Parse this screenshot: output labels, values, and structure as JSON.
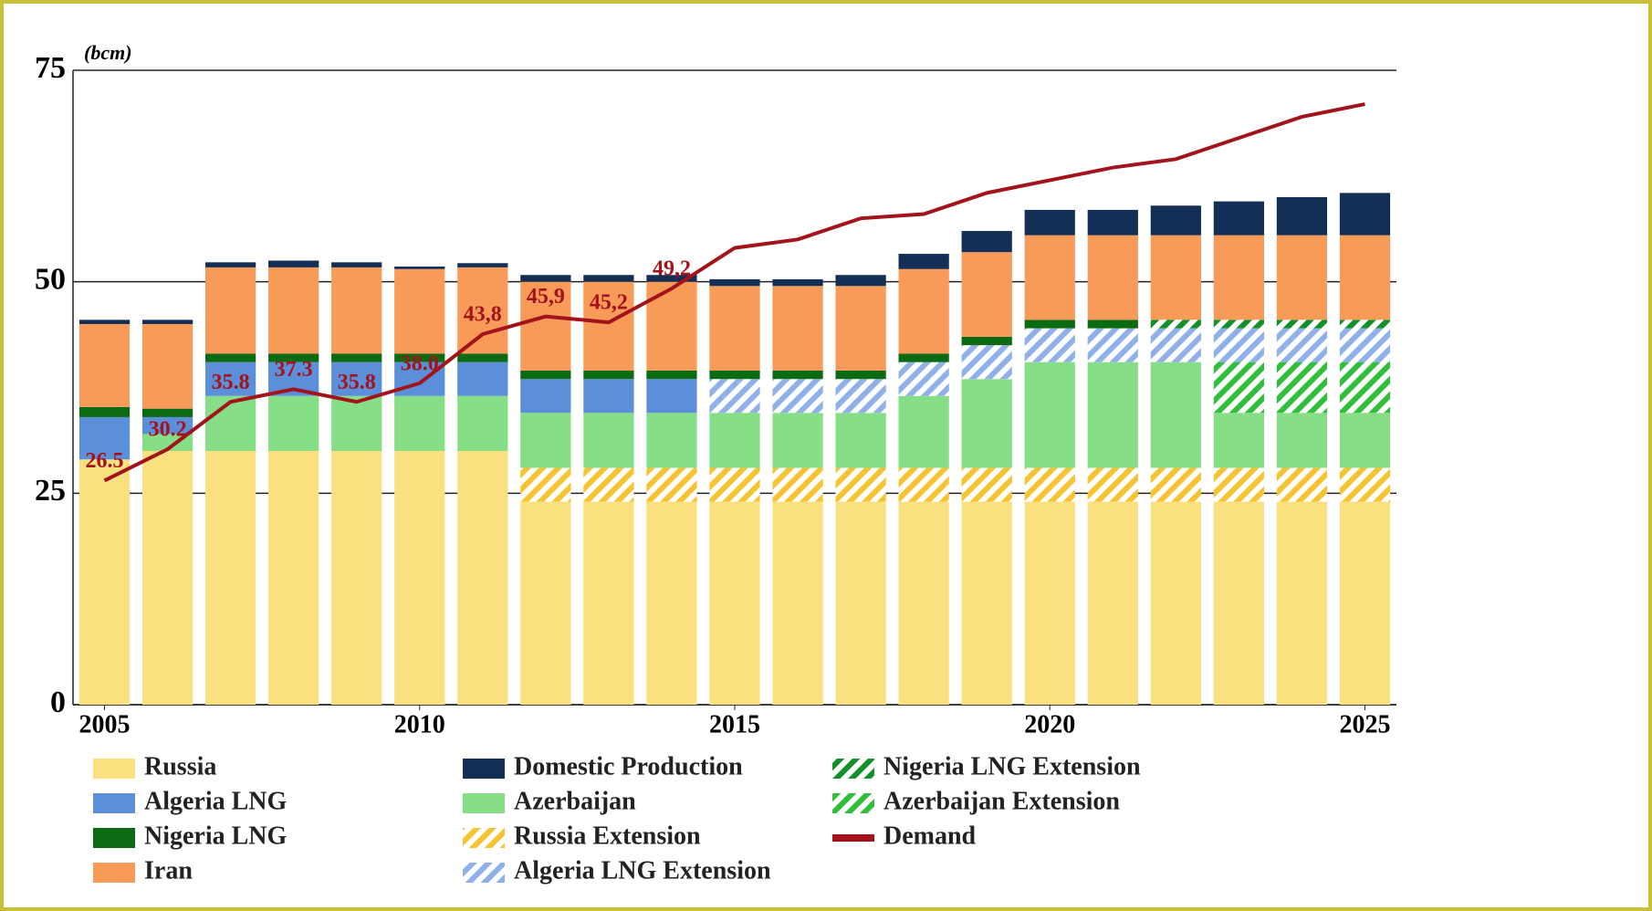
{
  "chart_data": {
    "type": "bar",
    "y_label": "(bcm)",
    "x": [
      2005,
      2006,
      2007,
      2008,
      2009,
      2010,
      2011,
      2012,
      2013,
      2014,
      2015,
      2016,
      2017,
      2018,
      2019,
      2020,
      2021,
      2022,
      2023,
      2024,
      2025
    ],
    "xlim": [
      2004.5,
      2025.5
    ],
    "xticks": [
      2005,
      2010,
      2015,
      2020,
      2025
    ],
    "ylim": [
      0,
      75
    ],
    "yticks": [
      0,
      25,
      50,
      75
    ],
    "grid": true,
    "series": [
      {
        "name": "Russia",
        "color": "#fbe07f",
        "hatch": false,
        "values": [
          29,
          30,
          30,
          30,
          30,
          30,
          30,
          24,
          24,
          24,
          24,
          24,
          24,
          24,
          24,
          24,
          24,
          24,
          24,
          24,
          24
        ]
      },
      {
        "name": "Algeria LNG",
        "color": "#5b8fd9",
        "hatch": false,
        "values": [
          5,
          2,
          4,
          4,
          4,
          4,
          4,
          4,
          4,
          4,
          0,
          0,
          0,
          0,
          0,
          0,
          0,
          0,
          0,
          0,
          0
        ]
      },
      {
        "name": "Nigeria LNG",
        "color": "#0b6b12",
        "hatch": false,
        "values": [
          1.2,
          1,
          1,
          1,
          1,
          1,
          1,
          1,
          1,
          1,
          1,
          1,
          1,
          1,
          1,
          1,
          1,
          0,
          0,
          0,
          0
        ]
      },
      {
        "name": "Iran",
        "color": "#f89a58",
        "hatch": false,
        "values": [
          9.8,
          10,
          10.2,
          10.2,
          10.2,
          10,
          10.2,
          10.5,
          10.5,
          10.5,
          10,
          10,
          10,
          10,
          10,
          10,
          10,
          10,
          10,
          10,
          10
        ]
      },
      {
        "name": "Domestic Production",
        "color": "#142f55",
        "hatch": false,
        "values": [
          0.5,
          0.5,
          0.6,
          0.8,
          0.6,
          0.3,
          0.5,
          0.8,
          0.8,
          0.8,
          0.8,
          0.8,
          1.3,
          1.8,
          2.5,
          3,
          3,
          3.5,
          4,
          4.5,
          5
        ]
      },
      {
        "name": "Azerbaijan",
        "color": "#86df86",
        "hatch": false,
        "values": [
          0,
          2,
          6.5,
          6.5,
          6.5,
          6.5,
          6.5,
          6.5,
          6.5,
          6.5,
          6.5,
          6.5,
          6.5,
          8.5,
          10.5,
          12.5,
          12.5,
          12.5,
          6.5,
          6.5,
          6.5
        ]
      },
      {
        "name": "Russia Extension",
        "color": "#f5c430",
        "hatch": true,
        "values": [
          0,
          0,
          0,
          0,
          0,
          0,
          0,
          4,
          4,
          4,
          4,
          4,
          4,
          4,
          4,
          4,
          4,
          4,
          4,
          4,
          4
        ]
      },
      {
        "name": "Algeria LNG Extension",
        "color": "#8fb0e8",
        "hatch": true,
        "values": [
          0,
          0,
          0,
          0,
          0,
          0,
          0,
          0,
          0,
          0,
          4,
          4,
          4,
          4,
          4,
          4,
          4,
          4,
          4,
          4,
          4
        ]
      },
      {
        "name": "Nigeria LNG Extension",
        "color": "#14902a",
        "hatch": true,
        "values": [
          0,
          0,
          0,
          0,
          0,
          0,
          0,
          0,
          0,
          0,
          0,
          0,
          0,
          0,
          0,
          0,
          0,
          1,
          1,
          1,
          1
        ]
      },
      {
        "name": "Azerbaijan Extension",
        "color": "#2fbf3a",
        "hatch": true,
        "values": [
          0,
          0,
          0,
          0,
          0,
          0,
          0,
          0,
          0,
          0,
          0,
          0,
          0,
          0,
          0,
          0,
          0,
          0,
          6,
          6,
          6
        ]
      },
      {
        "name": "Demand",
        "color": "#a3131b",
        "type": "line",
        "values": [
          26.5,
          30.2,
          35.8,
          37.3,
          35.8,
          38.0,
          43.8,
          45.9,
          45.2,
          49.2,
          54,
          55,
          57.5,
          58,
          60.5,
          62,
          63.5,
          64.5,
          67,
          69.5,
          71
        ],
        "value_labels": [
          "26.5",
          "30.2",
          "35.8",
          "37.3",
          "35.8",
          "38.0",
          "43,8",
          "45,9",
          "45,2",
          "49,2",
          null,
          null,
          null,
          null,
          null,
          null,
          null,
          null,
          null,
          null,
          null
        ]
      }
    ]
  }
}
